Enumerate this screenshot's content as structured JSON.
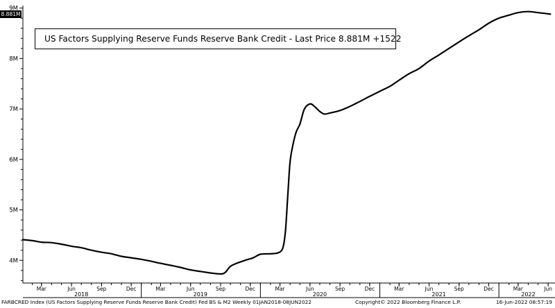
{
  "chart_data": {
    "type": "line",
    "series": [
      {
        "name": "US Factors Supplying Reserve Funds Reserve Bank Credit",
        "points": [
          [
            "2018-01-03",
            4.41
          ],
          [
            "2018-02-01",
            4.39
          ],
          [
            "2018-03-01",
            4.36
          ],
          [
            "2018-04-01",
            4.35
          ],
          [
            "2018-05-01",
            4.32
          ],
          [
            "2018-06-01",
            4.28
          ],
          [
            "2018-07-01",
            4.25
          ],
          [
            "2018-08-01",
            4.2
          ],
          [
            "2018-09-01",
            4.16
          ],
          [
            "2018-10-01",
            4.13
          ],
          [
            "2018-11-01",
            4.08
          ],
          [
            "2018-12-01",
            4.05
          ],
          [
            "2019-01-01",
            4.02
          ],
          [
            "2019-02-01",
            3.98
          ],
          [
            "2019-03-01",
            3.94
          ],
          [
            "2019-04-01",
            3.9
          ],
          [
            "2019-05-01",
            3.86
          ],
          [
            "2019-06-01",
            3.81
          ],
          [
            "2019-07-01",
            3.78
          ],
          [
            "2019-08-01",
            3.75
          ],
          [
            "2019-09-01",
            3.73
          ],
          [
            "2019-09-15",
            3.76
          ],
          [
            "2019-10-01",
            3.88
          ],
          [
            "2019-10-20",
            3.94
          ],
          [
            "2019-11-15",
            4.0
          ],
          [
            "2019-12-10",
            4.05
          ],
          [
            "2020-01-01",
            4.12
          ],
          [
            "2020-02-01",
            4.13
          ],
          [
            "2020-02-25",
            4.15
          ],
          [
            "2020-03-10",
            4.25
          ],
          [
            "2020-03-18",
            4.6
          ],
          [
            "2020-03-25",
            5.3
          ],
          [
            "2020-04-01",
            5.95
          ],
          [
            "2020-04-10",
            6.3
          ],
          [
            "2020-04-20",
            6.55
          ],
          [
            "2020-05-01",
            6.7
          ],
          [
            "2020-05-15",
            7.0
          ],
          [
            "2020-06-01",
            7.1
          ],
          [
            "2020-06-15",
            7.05
          ],
          [
            "2020-07-01",
            6.95
          ],
          [
            "2020-07-15",
            6.9
          ],
          [
            "2020-08-01",
            6.92
          ],
          [
            "2020-09-01",
            6.97
          ],
          [
            "2020-10-01",
            7.05
          ],
          [
            "2020-11-01",
            7.15
          ],
          [
            "2020-12-01",
            7.25
          ],
          [
            "2021-01-01",
            7.35
          ],
          [
            "2021-02-01",
            7.45
          ],
          [
            "2021-03-01",
            7.57
          ],
          [
            "2021-04-01",
            7.7
          ],
          [
            "2021-05-01",
            7.8
          ],
          [
            "2021-06-01",
            7.95
          ],
          [
            "2021-07-01",
            8.07
          ],
          [
            "2021-08-01",
            8.2
          ],
          [
            "2021-09-01",
            8.33
          ],
          [
            "2021-10-01",
            8.45
          ],
          [
            "2021-11-01",
            8.57
          ],
          [
            "2021-12-01",
            8.7
          ],
          [
            "2022-01-01",
            8.8
          ],
          [
            "2022-02-01",
            8.86
          ],
          [
            "2022-03-01",
            8.91
          ],
          [
            "2022-04-01",
            8.93
          ],
          [
            "2022-05-01",
            8.91
          ],
          [
            "2022-06-08",
            8.88
          ]
        ]
      }
    ],
    "ylim": [
      3.55,
      9.05
    ],
    "yticks": [
      {
        "value": 4,
        "label": "4M"
      },
      {
        "value": 5,
        "label": "5M"
      },
      {
        "value": 6,
        "label": "6M"
      },
      {
        "value": 7,
        "label": "7M"
      },
      {
        "value": 8,
        "label": "8M"
      },
      {
        "value": 9,
        "label": "9M"
      }
    ],
    "xlim": [
      "2018-01-03",
      "2022-06-22"
    ],
    "xticks": [
      {
        "date": "2018-03-01",
        "label": "Mar"
      },
      {
        "date": "2018-06-01",
        "label": "Jun"
      },
      {
        "date": "2018-09-01",
        "label": "Sep"
      },
      {
        "date": "2018-12-01",
        "label": "Dec"
      },
      {
        "date": "2019-03-01",
        "label": "Mar"
      },
      {
        "date": "2019-06-01",
        "label": "Jun"
      },
      {
        "date": "2019-09-01",
        "label": "Sep"
      },
      {
        "date": "2019-12-01",
        "label": "Dec"
      },
      {
        "date": "2020-03-01",
        "label": "Mar"
      },
      {
        "date": "2020-06-01",
        "label": "Jun"
      },
      {
        "date": "2020-09-01",
        "label": "Sep"
      },
      {
        "date": "2020-12-01",
        "label": "Dec"
      },
      {
        "date": "2021-03-01",
        "label": "Mar"
      },
      {
        "date": "2021-06-01",
        "label": "Jun"
      },
      {
        "date": "2021-09-01",
        "label": "Sep"
      },
      {
        "date": "2021-12-01",
        "label": "Dec"
      },
      {
        "date": "2022-03-01",
        "label": "Mar"
      },
      {
        "date": "2022-06-01",
        "label": "Jun"
      }
    ],
    "years": [
      {
        "date": "2018-07-01",
        "label": "2018"
      },
      {
        "date": "2019-07-01",
        "label": "2019"
      },
      {
        "date": "2020-07-01",
        "label": "2020"
      },
      {
        "date": "2021-07-01",
        "label": "2021"
      },
      {
        "date": "2022-04-01",
        "label": "2022"
      }
    ],
    "year_boundaries": [
      "2019-01-01",
      "2020-01-01",
      "2021-01-01",
      "2022-01-01"
    ],
    "last_value_label": "8.881M",
    "legend": "US Factors Supplying Reserve Funds Reserve Bank Credit - Last Price 8.881M +1522",
    "grid": false,
    "line_color": "#000000"
  },
  "footer": {
    "left": "FARBCRED Index (US Factors Supplying Reserve Funds Reserve Bank Credit) Fed BS & M2  Weekly 01JAN2018-08JUN2022",
    "center": "Copyright© 2022 Bloomberg Finance L.P.",
    "right": "16-Jun-2022 08:57:19"
  }
}
